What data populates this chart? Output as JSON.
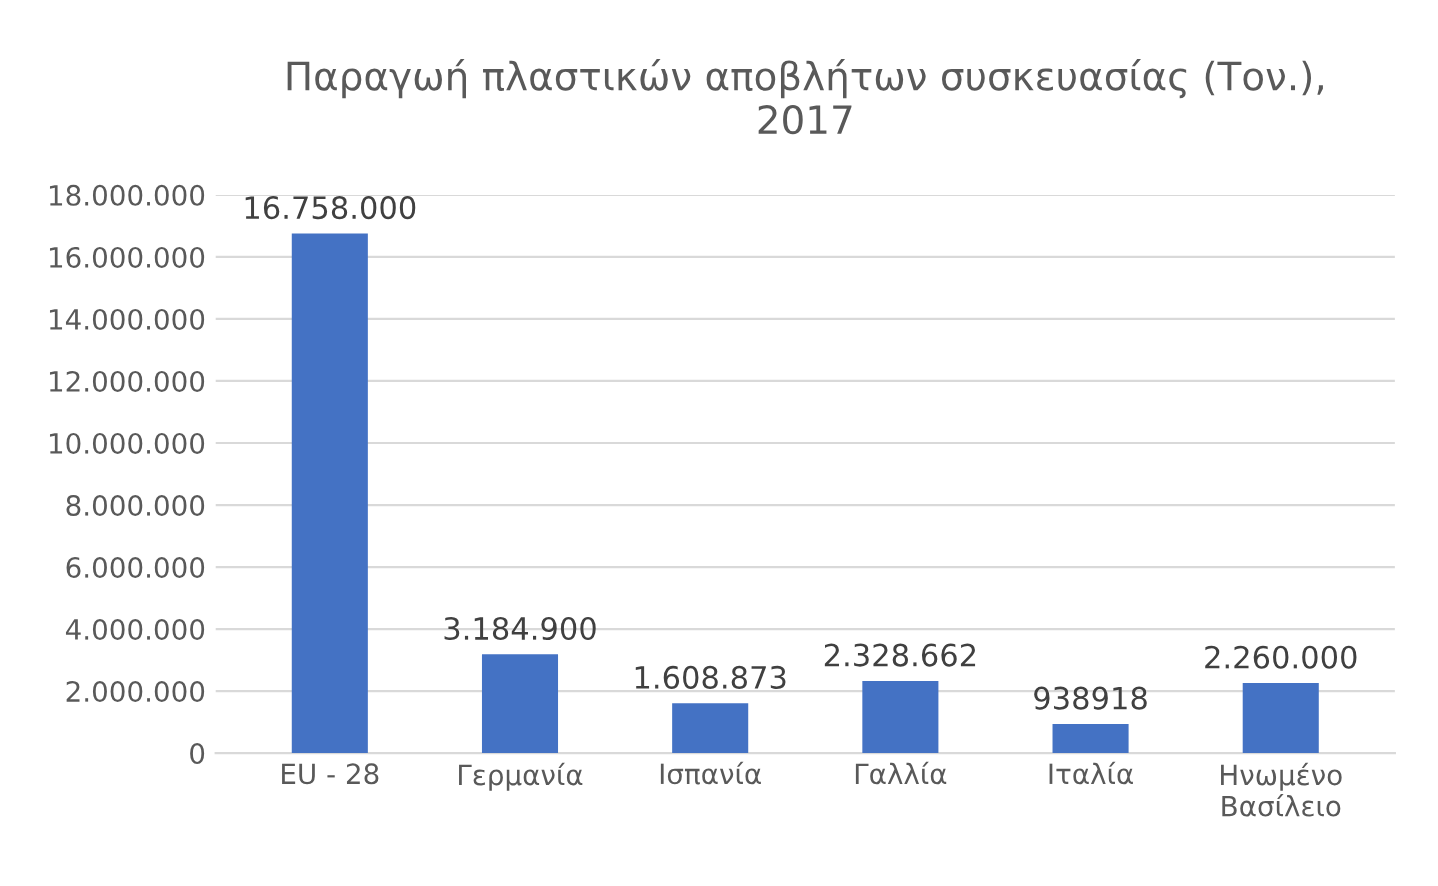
{
  "chart_data": {
    "type": "bar",
    "title": "Παραγωή πλαστικών αποβλήτων συσκευασίας (Τον.),\n2017",
    "categories": [
      "EU - 28",
      "Γερμανία",
      "Ισπανία",
      "Γαλλία",
      "Ιταλία",
      "Ηνωμένο\nΒασίλειο"
    ],
    "values": [
      16758000,
      3184900,
      1608873,
      2328662,
      938918,
      2260000
    ],
    "value_labels": [
      "16.758.000",
      "3.184.900",
      "1.608.873",
      "2.328.662",
      "938918",
      "2.260.000"
    ],
    "color": "#4472c4",
    "ylim": [
      0,
      18000000
    ],
    "yticks": [
      {
        "value": 0,
        "label": "0"
      },
      {
        "value": 2000000,
        "label": "2.000.000"
      },
      {
        "value": 4000000,
        "label": "4.000.000"
      },
      {
        "value": 6000000,
        "label": "6.000.000"
      },
      {
        "value": 8000000,
        "label": "8.000.000"
      },
      {
        "value": 10000000,
        "label": "10.000.000"
      },
      {
        "value": 12000000,
        "label": "12.000.000"
      },
      {
        "value": 14000000,
        "label": "14.000.000"
      },
      {
        "value": 16000000,
        "label": "16.000.000"
      },
      {
        "value": 18000000,
        "label": "18.000.000"
      }
    ],
    "grid": "y"
  }
}
